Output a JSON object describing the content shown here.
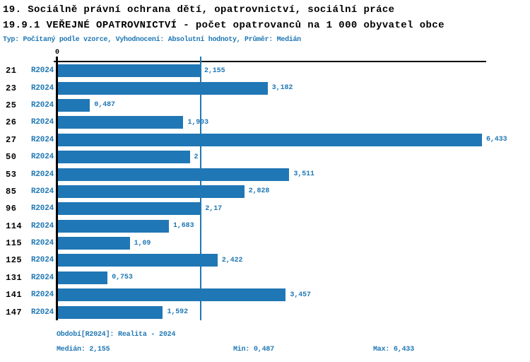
{
  "header": {
    "line1": "19. Sociálně právní ochrana dětí, opatrovnictví, sociální práce",
    "line2": "19.9.1 VEŘEJNÉ OPATROVNICTVÍ - počet opatrovanců na 1 000 obyvatel obce",
    "subtitle": "Typ: Počítaný podle vzorce, Vyhodnocení: Absolutní hodnoty, Průměr: Medián"
  },
  "chart_data": {
    "type": "bar",
    "orientation": "horizontal",
    "title": "19.9.1 VEŘEJNÉ OPATROVNICTVÍ - počet opatrovanců na 1 000 obyvatel obce",
    "zero_tick_label": "0",
    "series_label": "R2024",
    "categories": [
      "21",
      "23",
      "25",
      "26",
      "27",
      "50",
      "53",
      "85",
      "96",
      "114",
      "115",
      "125",
      "131",
      "141",
      "147"
    ],
    "values": [
      2.155,
      3.182,
      0.487,
      1.903,
      6.433,
      2,
      3.511,
      2.828,
      2.17,
      1.683,
      1.09,
      2.422,
      0.753,
      3.457,
      1.592
    ],
    "value_labels": [
      "2,155",
      "3,182",
      "0,487",
      "1,903",
      "6,433",
      "2",
      "3,511",
      "2,828",
      "2,17",
      "1,683",
      "1,09",
      "2,422",
      "0,753",
      "3,457",
      "1,592"
    ],
    "xlim": [
      0,
      6.433
    ],
    "median": 2.155,
    "min": 0.487,
    "max": 6.433,
    "grid": false,
    "bar_color": "#2077b5",
    "median_line_color": "#2077b5",
    "value_text_color": "#1f77b4"
  },
  "footer": {
    "period": "Období[R2024]: Realita - 2024",
    "median": "Medián: 2,155",
    "min": "Min: 0,487",
    "max": "Max: 6,433"
  }
}
